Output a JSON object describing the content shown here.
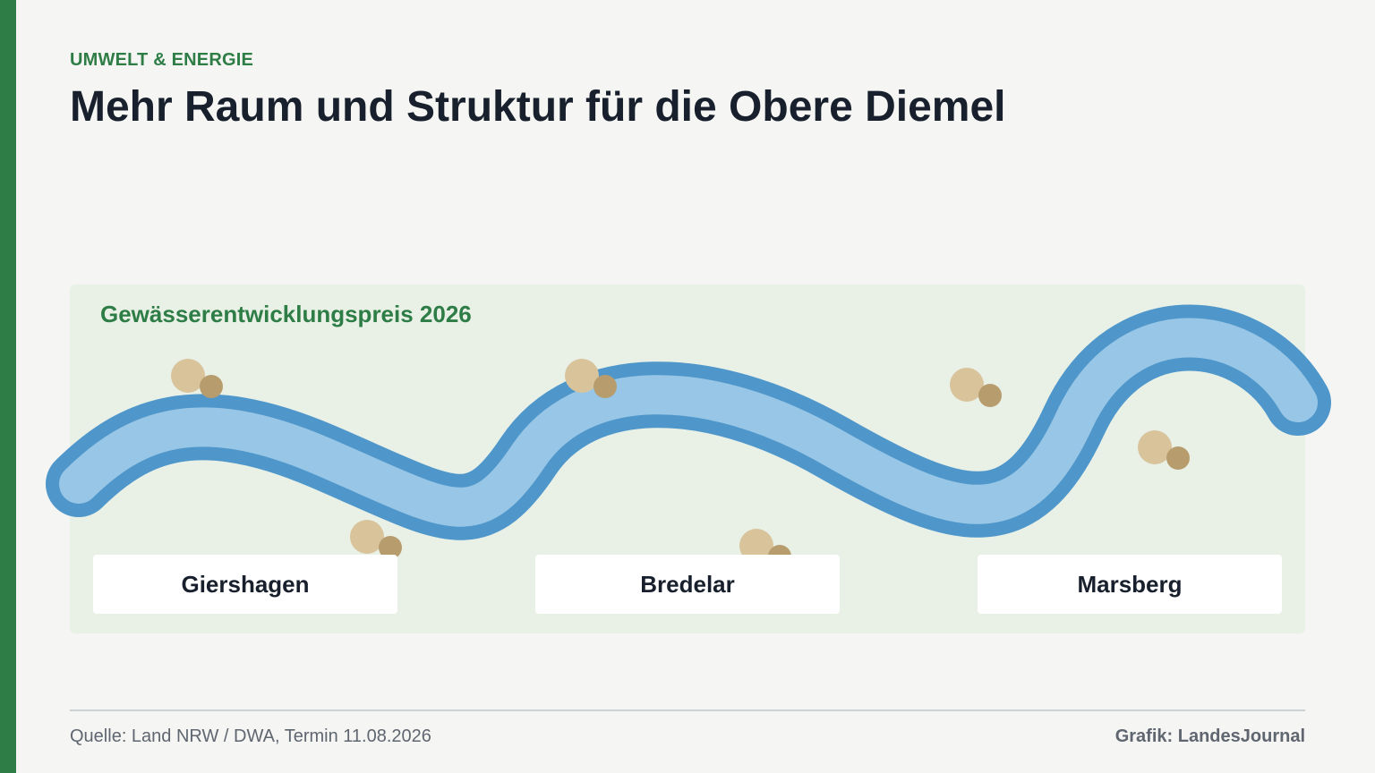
{
  "header": {
    "kicker": "UMWELT & ENERGIE",
    "title": "Mehr Raum und Struktur für die Obere Diemel"
  },
  "panel": {
    "title": "Gewässerentwicklungspreis 2026",
    "locations": [
      "Giershagen",
      "Bredelar",
      "Marsberg"
    ]
  },
  "footer": {
    "source": "Quelle: Land NRW / DWA, Termin 11.08.2026",
    "credit": "Grafik: LandesJournal"
  },
  "colors": {
    "accent": "#2e7d46",
    "river_outer": "#4f97cb",
    "river_inner": "#98c6e6",
    "stone_light": "#d8c39b",
    "stone_dark": "#b79d6e"
  }
}
